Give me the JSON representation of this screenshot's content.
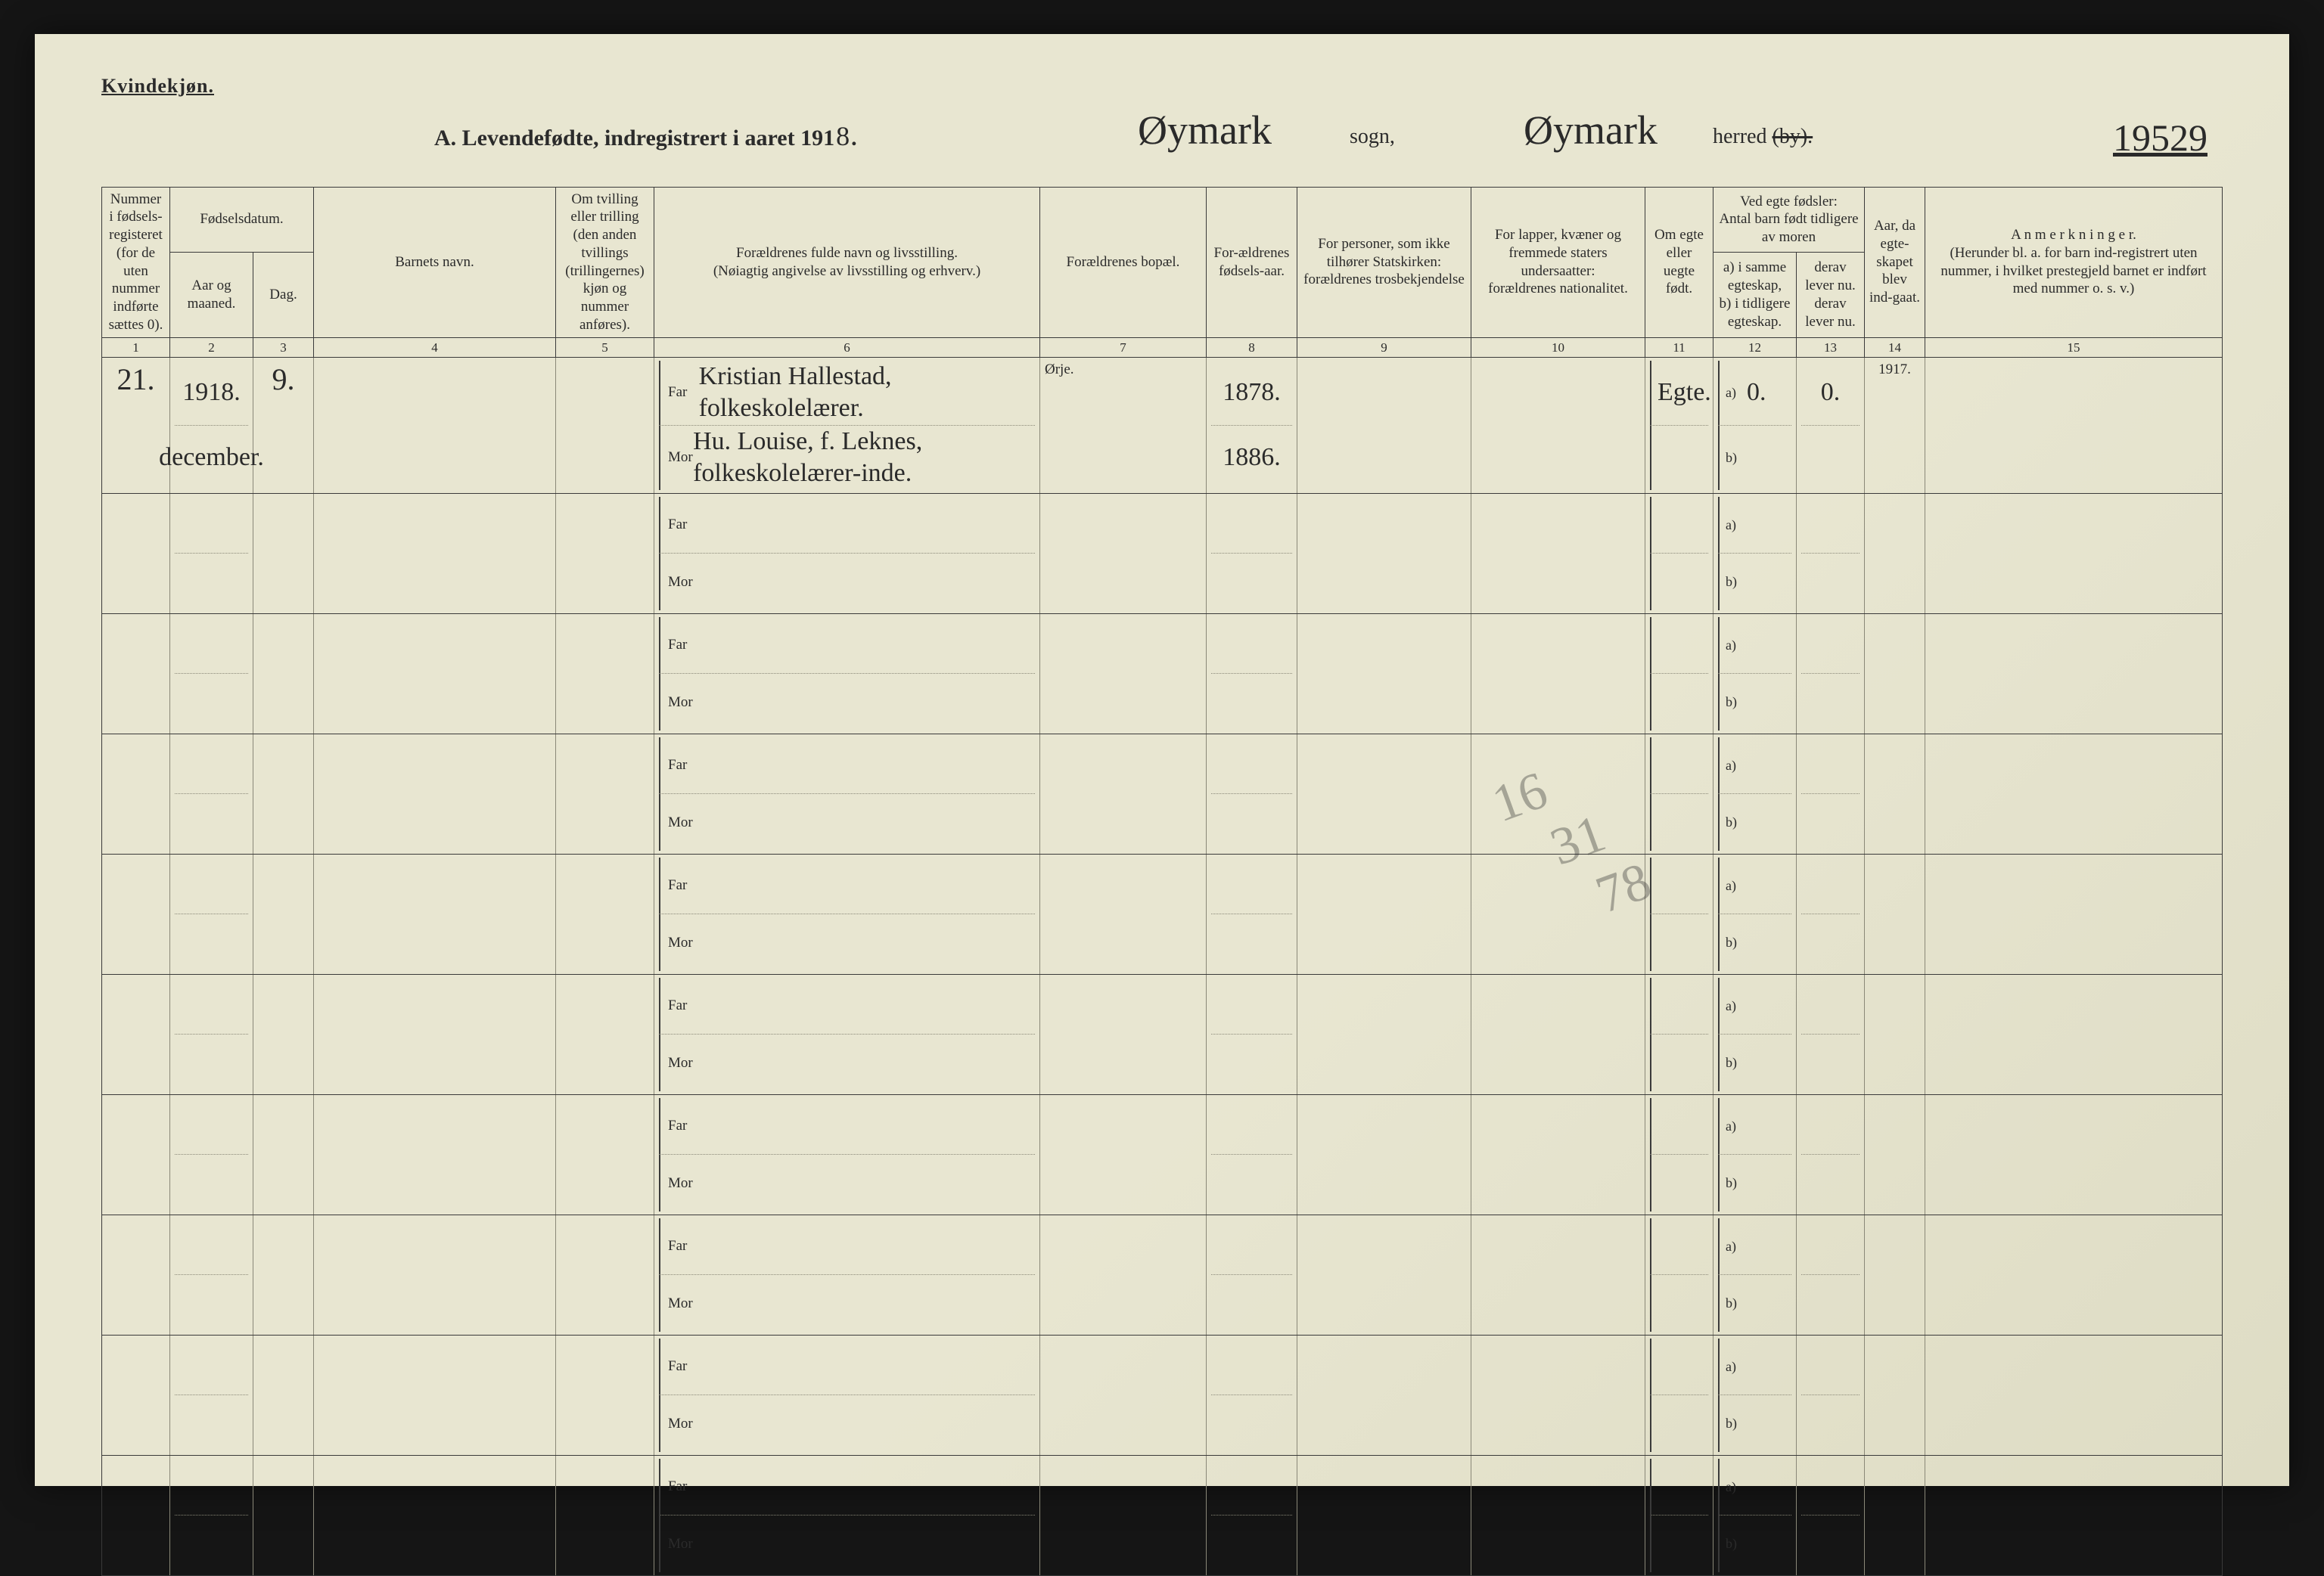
{
  "corner": "Kvindekjøn.",
  "title": {
    "prefix": "A.  Levendefødte, indregistrert i aaret 191",
    "year_last_digit": "8",
    "period": "."
  },
  "sogn_hand": "Øymark",
  "sogn_label": "sogn,",
  "herred_hand": "Øymark",
  "herred_label": "herred",
  "herred_struck": "(by).",
  "page_number_hand": "19529",
  "headers": {
    "c1": "Nummer i fødsels-registeret (for de uten nummer indførte sættes 0).",
    "c2_top": "Fødselsdatum.",
    "c2a": "Aar og maaned.",
    "c2b": "Dag.",
    "c4": "Barnets navn.",
    "c5": "Om tvilling eller trilling (den anden tvillings (trillingernes) kjøn og nummer anføres).",
    "c6": "Forældrenes fulde navn og livsstilling.\n(Nøiagtig angivelse av livsstilling og erhverv.)",
    "c7": "Forældrenes bopæl.",
    "c8": "For-ældrenes fødsels-aar.",
    "c9": "For personer, som ikke tilhører Statskirken:\nforældrenes trosbekjendelse",
    "c10": "For lapper, kvæner og fremmede staters undersaatter:\nforældrenes nationalitet.",
    "c11": "Om egte eller uegte født.",
    "c12_top": "Ved egte fødsler:\nAntal barn født tidligere av moren",
    "c12a": "a) i samme egteskap,\nb) i tidligere egteskap.",
    "c13": "derav lever nu.\nderav lever nu.",
    "c14": "Aar, da egte-skapet blev ind-gaat.",
    "c15": "A n m e r k n i n g e r.\n(Herunder bl. a. for barn ind-registrert uten nummer, i hvilket prestegjeld barnet er indført med nummer o. s. v.)"
  },
  "colnums": [
    "1",
    "2",
    "3",
    "4",
    "5",
    "6",
    "7",
    "8",
    "9",
    "10",
    "11",
    "12",
    "13",
    "14",
    "15"
  ],
  "far_label": "Far",
  "mor_label": "Mor",
  "a_label": "a)",
  "b_label": "b)",
  "row1": {
    "num": "21.",
    "aar": "1918.",
    "maaned": "december.",
    "dag": "9.",
    "far": "Kristian Hallestad, folkeskolelærer.",
    "mor": "Hu. Louise, f. Leknes, folkeskolelærer-inde.",
    "bopel": "Ørje.",
    "f_aar_far": "1878.",
    "f_aar_mor": "1886.",
    "egte": "Egte.",
    "a_val": "0.",
    "b_val": "",
    "lever_a": "0.",
    "egteskap_aar": "1917."
  },
  "scribble": "16\n   31\n     78"
}
